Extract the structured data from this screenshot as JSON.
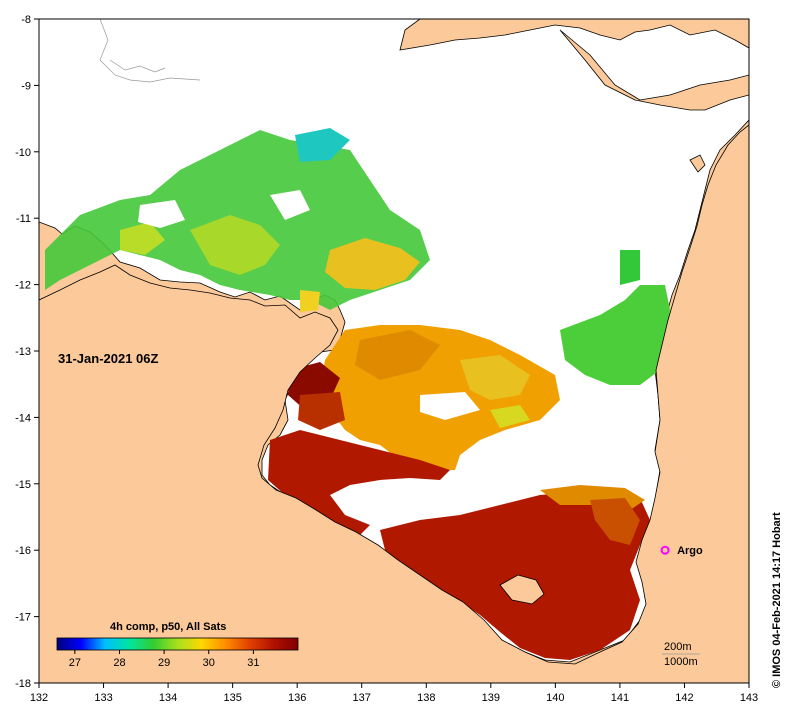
{
  "map": {
    "date_label": "31-Jan-2021 06Z",
    "credit": "© IMOS 04-Feb-2021 14:17 Hobart",
    "colorbar": {
      "title": "4h comp, p50, All Sats",
      "ticks": [
        "27",
        "28",
        "29",
        "30",
        "31"
      ],
      "range": [
        26.6,
        32
      ],
      "colors": [
        "#00007f",
        "#0000ff",
        "#00bfff",
        "#00e5a0",
        "#32cd32",
        "#a8e01e",
        "#ffd700",
        "#ff8c00",
        "#e04000",
        "#b01000",
        "#800000"
      ]
    },
    "axes": {
      "x_ticks": [
        "132",
        "133",
        "134",
        "135",
        "136",
        "137",
        "138",
        "139",
        "140",
        "141",
        "142",
        "143"
      ],
      "y_ticks": [
        "-8",
        "-9",
        "-10",
        "-11",
        "-12",
        "-13",
        "-14",
        "-15",
        "-16",
        "-17",
        "-18"
      ],
      "xlim": [
        132,
        143
      ],
      "ylim": [
        -18,
        -8
      ]
    },
    "markers": [
      {
        "label": "Argo",
        "lon": 141.7,
        "lat": -16.0
      }
    ],
    "scale": {
      "contour_1": "200m",
      "contour_2": "1000m"
    },
    "colors": {
      "land": "#fbc99a",
      "sea_nodata": "#ffffff",
      "argo_marker": "#ff00ff"
    }
  }
}
